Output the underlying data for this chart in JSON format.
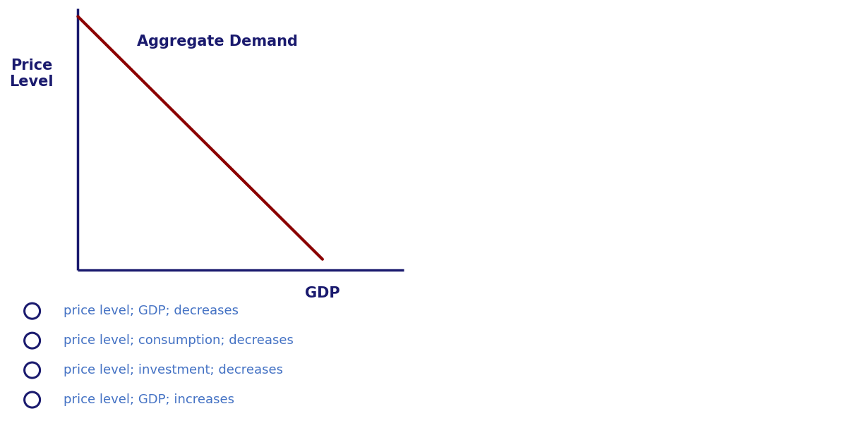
{
  "background_color": "#ffffff",
  "axis_color": "#1a1a6e",
  "line_color": "#8b0000",
  "ylabel": "Price\nLevel",
  "xlabel": "GDP",
  "ad_label": "Aggregate Demand",
  "ylabel_color": "#1a1a6e",
  "xlabel_color": "#1a1a6e",
  "ad_label_color": "#1a1a6e",
  "axis_linewidth": 2.5,
  "line_linewidth": 3.0,
  "options": [
    "price level; GDP; decreases",
    "price level; consumption; decreases",
    "price level; investment; decreases",
    "price level; GDP; increases"
  ],
  "option_color": "#4472c4",
  "circle_color": "#1a1a6e",
  "option_fontsize": 13,
  "circle_linewidth": 2.2
}
